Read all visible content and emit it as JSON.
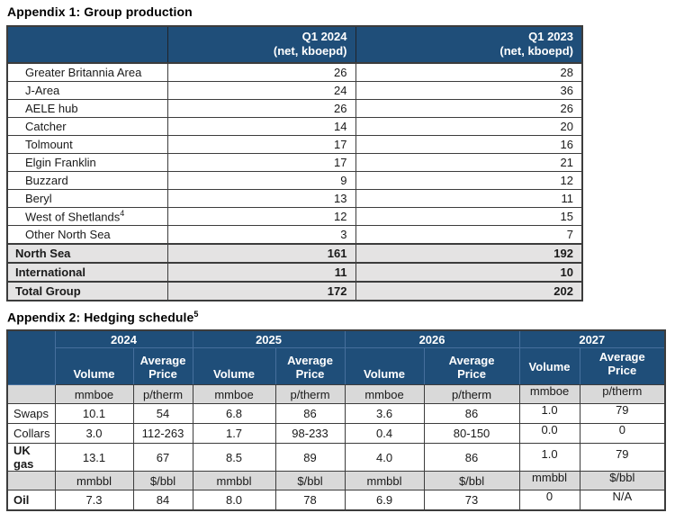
{
  "colors": {
    "header_bg": "#1F4E79",
    "header_text": "#FFFFFF",
    "total_row_bg": "#E4E3E3",
    "unit_row_bg": "#D9D9D9",
    "border": "#3C3C3C",
    "text": "#1A1A1A"
  },
  "appendix1": {
    "title": "Appendix 1: Group production",
    "columns": [
      {
        "line1": "Q1 2024",
        "line2": "(net, kboepd)"
      },
      {
        "line1": "Q1 2023",
        "line2": "(net, kboepd)"
      }
    ],
    "rows": [
      {
        "label": "Greater Britannia Area",
        "label_sup": "",
        "q1_2024": "26",
        "q1_2023": "28",
        "bold": false
      },
      {
        "label": "J-Area",
        "label_sup": "",
        "q1_2024": "24",
        "q1_2023": "36",
        "bold": false
      },
      {
        "label": "AELE hub",
        "label_sup": "",
        "q1_2024": "26",
        "q1_2023": "26",
        "bold": false
      },
      {
        "label": "Catcher",
        "label_sup": "",
        "q1_2024": "14",
        "q1_2023": "20",
        "bold": false
      },
      {
        "label": "Tolmount",
        "label_sup": "",
        "q1_2024": "17",
        "q1_2023": "16",
        "bold": false
      },
      {
        "label": "Elgin Franklin",
        "label_sup": "",
        "q1_2024": "17",
        "q1_2023": "21",
        "bold": false
      },
      {
        "label": "Buzzard",
        "label_sup": "",
        "q1_2024": "9",
        "q1_2023": "12",
        "bold": false
      },
      {
        "label": "Beryl",
        "label_sup": "",
        "q1_2024": "13",
        "q1_2023": "11",
        "bold": false
      },
      {
        "label": "West of Shetlands",
        "label_sup": "4",
        "q1_2024": "12",
        "q1_2023": "15",
        "bold": false
      },
      {
        "label": "Other North Sea",
        "label_sup": "",
        "q1_2024": "3",
        "q1_2023": "7",
        "bold": false
      },
      {
        "label": "North Sea",
        "label_sup": "",
        "q1_2024": "161",
        "q1_2023": "192",
        "bold": true
      },
      {
        "label": "International",
        "label_sup": "",
        "q1_2024": "11",
        "q1_2023": "10",
        "bold": true
      },
      {
        "label": "Total Group",
        "label_sup": "",
        "q1_2024": "172",
        "q1_2023": "202",
        "bold": true
      }
    ]
  },
  "appendix2": {
    "title": "Appendix 2: Hedging schedule",
    "title_sup": "5",
    "years": [
      "2024",
      "2025",
      "2026",
      "2027"
    ],
    "volume_label": "Volume",
    "avg_price_line1": "Average",
    "avg_price_line2": "Price",
    "gas_units": [
      "mmboe",
      "p/therm",
      "mmboe",
      "p/therm",
      "mmboe",
      "p/therm",
      "mmboe",
      "p/therm"
    ],
    "oil_units": [
      "mmbbl",
      "$/bbl",
      "mmbbl",
      "$/bbl",
      "mmbbl",
      "$/bbl",
      "mmbbl",
      "$/bbl"
    ],
    "gas_rows": [
      {
        "label": "Swaps",
        "bold": false,
        "values": [
          "10.1",
          "54",
          "6.8",
          "86",
          "3.6",
          "86",
          "1.0",
          "79"
        ]
      },
      {
        "label": "Collars",
        "bold": false,
        "values": [
          "3.0",
          "112-263",
          "1.7",
          "98-233",
          "0.4",
          "80-150",
          "0.0",
          "0"
        ]
      },
      {
        "label": "UK gas",
        "bold": true,
        "values": [
          "13.1",
          "67",
          "8.5",
          "89",
          "4.0",
          "86",
          "1.0",
          "79"
        ]
      }
    ],
    "oil_rows": [
      {
        "label": "Oil",
        "bold": true,
        "values": [
          "7.3",
          "84",
          "8.0",
          "78",
          "6.9",
          "73",
          "0",
          "N/A"
        ]
      }
    ]
  }
}
